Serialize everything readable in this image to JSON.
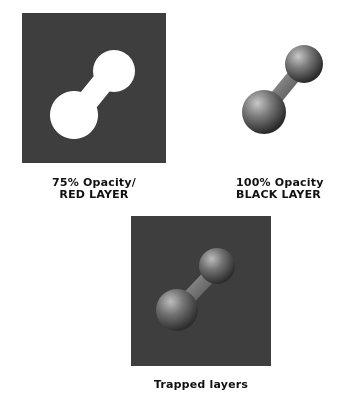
{
  "panels": {
    "red_layer": {
      "caption_line1": "75% Opacity/",
      "caption_line2": "RED LAYER",
      "background": "#3e3e3e",
      "shape_color": "#ffffff"
    },
    "black_layer": {
      "caption_line1": "100% Opacity",
      "caption_line2": "BLACK LAYER",
      "shape_color": "#6a6a6a"
    },
    "trapped": {
      "caption": "Trapped layers",
      "background": "#3e3e3e",
      "shape_color": "#6a6a6a"
    }
  }
}
